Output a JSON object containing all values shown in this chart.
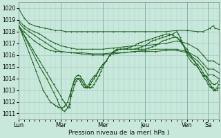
{
  "bg_color": "#c8e8dc",
  "grid_color": "#a8ccc0",
  "line_color": "#1a5c1a",
  "ylim": [
    1010.5,
    1020.5
  ],
  "yticks": [
    1011,
    1012,
    1013,
    1014,
    1015,
    1016,
    1017,
    1018,
    1019,
    1020
  ],
  "xlabel": "Pression niveau de la mer( hPa )",
  "day_labels": [
    "Lun",
    "Mar",
    "Mer",
    "Jeu",
    "Ven",
    "Sa"
  ],
  "day_positions": [
    0,
    48,
    96,
    144,
    192,
    216
  ],
  "xlim": [
    0,
    228
  ],
  "lines": [
    {
      "points": [
        [
          0,
          1020.0
        ],
        [
          6,
          1019.2
        ],
        [
          12,
          1018.7
        ],
        [
          18,
          1018.5
        ],
        [
          24,
          1018.4
        ],
        [
          30,
          1018.3
        ],
        [
          36,
          1018.2
        ],
        [
          42,
          1018.1
        ],
        [
          48,
          1018.1
        ],
        [
          54,
          1018.0
        ],
        [
          60,
          1018.0
        ],
        [
          66,
          1018.0
        ],
        [
          72,
          1018.0
        ],
        [
          78,
          1018.0
        ],
        [
          84,
          1018.0
        ],
        [
          90,
          1018.0
        ],
        [
          96,
          1018.0
        ],
        [
          108,
          1018.0
        ],
        [
          120,
          1018.0
        ],
        [
          132,
          1018.0
        ],
        [
          144,
          1018.0
        ],
        [
          156,
          1018.0
        ],
        [
          168,
          1018.0
        ],
        [
          180,
          1018.1
        ],
        [
          192,
          1018.1
        ],
        [
          204,
          1018.0
        ],
        [
          210,
          1018.0
        ],
        [
          216,
          1018.2
        ],
        [
          218,
          1018.3
        ],
        [
          222,
          1018.5
        ],
        [
          224,
          1018.3
        ],
        [
          228,
          1018.2
        ]
      ]
    },
    {
      "points": [
        [
          0,
          1019.0
        ],
        [
          6,
          1018.5
        ],
        [
          12,
          1018.2
        ],
        [
          18,
          1018.0
        ],
        [
          24,
          1017.8
        ],
        [
          30,
          1017.5
        ],
        [
          36,
          1017.2
        ],
        [
          42,
          1017.0
        ],
        [
          48,
          1016.8
        ],
        [
          54,
          1016.7
        ],
        [
          60,
          1016.6
        ],
        [
          66,
          1016.5
        ],
        [
          72,
          1016.5
        ],
        [
          84,
          1016.5
        ],
        [
          96,
          1016.5
        ],
        [
          108,
          1016.6
        ],
        [
          120,
          1016.7
        ],
        [
          132,
          1016.8
        ],
        [
          144,
          1016.8
        ],
        [
          156,
          1016.9
        ],
        [
          168,
          1017.0
        ],
        [
          180,
          1017.2
        ],
        [
          192,
          1017.0
        ],
        [
          204,
          1016.5
        ],
        [
          210,
          1016.0
        ],
        [
          216,
          1015.5
        ],
        [
          218,
          1015.5
        ],
        [
          222,
          1015.5
        ],
        [
          228,
          1015.2
        ]
      ]
    },
    {
      "points": [
        [
          0,
          1018.8
        ],
        [
          6,
          1018.3
        ],
        [
          12,
          1018.0
        ],
        [
          18,
          1017.7
        ],
        [
          24,
          1017.4
        ],
        [
          30,
          1017.1
        ],
        [
          36,
          1016.8
        ],
        [
          42,
          1016.5
        ],
        [
          48,
          1016.3
        ],
        [
          60,
          1016.2
        ],
        [
          72,
          1016.1
        ],
        [
          84,
          1016.0
        ],
        [
          96,
          1016.0
        ],
        [
          108,
          1016.1
        ],
        [
          120,
          1016.2
        ],
        [
          132,
          1016.3
        ],
        [
          144,
          1016.4
        ],
        [
          156,
          1016.5
        ],
        [
          168,
          1016.5
        ],
        [
          180,
          1016.5
        ],
        [
          192,
          1016.3
        ],
        [
          204,
          1015.8
        ],
        [
          210,
          1015.3
        ],
        [
          216,
          1014.8
        ],
        [
          222,
          1014.8
        ],
        [
          228,
          1014.5
        ]
      ]
    },
    {
      "points": [
        [
          0,
          1018.5
        ],
        [
          6,
          1018.0
        ],
        [
          12,
          1017.6
        ],
        [
          18,
          1017.2
        ],
        [
          24,
          1016.9
        ],
        [
          30,
          1016.6
        ],
        [
          36,
          1016.4
        ],
        [
          42,
          1016.3
        ],
        [
          48,
          1016.3
        ],
        [
          60,
          1016.2
        ],
        [
          72,
          1016.2
        ],
        [
          84,
          1016.1
        ],
        [
          96,
          1016.1
        ],
        [
          108,
          1016.2
        ],
        [
          120,
          1016.2
        ],
        [
          132,
          1016.3
        ],
        [
          144,
          1016.3
        ],
        [
          156,
          1016.3
        ],
        [
          168,
          1016.4
        ],
        [
          180,
          1016.4
        ],
        [
          192,
          1016.2
        ],
        [
          204,
          1015.5
        ],
        [
          210,
          1015.0
        ],
        [
          216,
          1014.3
        ],
        [
          222,
          1014.3
        ],
        [
          228,
          1014.0
        ]
      ]
    },
    {
      "points": [
        [
          0,
          1018.5
        ],
        [
          4,
          1018.0
        ],
        [
          8,
          1017.5
        ],
        [
          12,
          1017.0
        ],
        [
          16,
          1016.5
        ],
        [
          20,
          1016.0
        ],
        [
          24,
          1015.5
        ],
        [
          28,
          1015.0
        ],
        [
          32,
          1014.5
        ],
        [
          36,
          1014.0
        ],
        [
          40,
          1013.5
        ],
        [
          44,
          1013.0
        ],
        [
          48,
          1012.5
        ],
        [
          50,
          1012.2
        ],
        [
          52,
          1012.0
        ],
        [
          54,
          1011.8
        ],
        [
          56,
          1011.5
        ],
        [
          58,
          1011.5
        ],
        [
          60,
          1013.0
        ],
        [
          62,
          1013.5
        ],
        [
          64,
          1014.0
        ],
        [
          66,
          1014.2
        ],
        [
          68,
          1014.3
        ],
        [
          70,
          1014.2
        ],
        [
          72,
          1014.0
        ],
        [
          74,
          1013.8
        ],
        [
          76,
          1013.5
        ],
        [
          78,
          1013.3
        ],
        [
          80,
          1013.2
        ],
        [
          82,
          1013.2
        ],
        [
          84,
          1013.3
        ],
        [
          86,
          1013.5
        ],
        [
          88,
          1013.8
        ],
        [
          90,
          1014.0
        ],
        [
          92,
          1014.3
        ],
        [
          94,
          1014.6
        ],
        [
          96,
          1015.0
        ],
        [
          100,
          1015.5
        ],
        [
          104,
          1016.0
        ],
        [
          108,
          1016.3
        ],
        [
          112,
          1016.5
        ],
        [
          116,
          1016.5
        ],
        [
          120,
          1016.5
        ],
        [
          124,
          1016.6
        ],
        [
          128,
          1016.7
        ],
        [
          132,
          1016.8
        ],
        [
          136,
          1017.0
        ],
        [
          140,
          1017.1
        ],
        [
          144,
          1017.2
        ],
        [
          148,
          1017.3
        ],
        [
          152,
          1017.4
        ],
        [
          156,
          1017.5
        ],
        [
          160,
          1017.6
        ],
        [
          164,
          1017.7
        ],
        [
          168,
          1017.8
        ],
        [
          172,
          1017.8
        ],
        [
          176,
          1017.7
        ],
        [
          180,
          1017.5
        ],
        [
          184,
          1017.2
        ],
        [
          188,
          1016.8
        ],
        [
          192,
          1016.5
        ],
        [
          196,
          1016.0
        ],
        [
          200,
          1015.5
        ],
        [
          204,
          1015.0
        ],
        [
          208,
          1014.5
        ],
        [
          210,
          1014.3
        ],
        [
          212,
          1014.2
        ],
        [
          214,
          1014.1
        ],
        [
          216,
          1013.8
        ],
        [
          218,
          1013.5
        ],
        [
          220,
          1013.3
        ],
        [
          222,
          1013.2
        ],
        [
          224,
          1013.0
        ],
        [
          226,
          1013.0
        ],
        [
          228,
          1013.2
        ]
      ]
    },
    {
      "points": [
        [
          0,
          1018.5
        ],
        [
          4,
          1018.0
        ],
        [
          8,
          1017.4
        ],
        [
          12,
          1016.8
        ],
        [
          16,
          1016.2
        ],
        [
          20,
          1015.6
        ],
        [
          24,
          1015.0
        ],
        [
          28,
          1014.5
        ],
        [
          32,
          1014.0
        ],
        [
          36,
          1013.4
        ],
        [
          40,
          1012.8
        ],
        [
          44,
          1012.2
        ],
        [
          46,
          1011.8
        ],
        [
          48,
          1011.5
        ],
        [
          50,
          1011.3
        ],
        [
          52,
          1011.2
        ],
        [
          54,
          1011.3
        ],
        [
          56,
          1011.5
        ],
        [
          58,
          1011.8
        ],
        [
          60,
          1012.5
        ],
        [
          62,
          1013.0
        ],
        [
          64,
          1013.5
        ],
        [
          66,
          1013.8
        ],
        [
          68,
          1014.0
        ],
        [
          70,
          1014.0
        ],
        [
          72,
          1013.8
        ],
        [
          74,
          1013.5
        ],
        [
          76,
          1013.3
        ],
        [
          78,
          1013.2
        ],
        [
          80,
          1013.3
        ],
        [
          82,
          1013.5
        ],
        [
          84,
          1013.8
        ],
        [
          86,
          1014.0
        ],
        [
          88,
          1014.2
        ],
        [
          90,
          1014.5
        ],
        [
          92,
          1014.8
        ],
        [
          94,
          1015.0
        ],
        [
          96,
          1015.2
        ],
        [
          100,
          1015.5
        ],
        [
          104,
          1016.0
        ],
        [
          108,
          1016.3
        ],
        [
          112,
          1016.5
        ],
        [
          116,
          1016.5
        ],
        [
          120,
          1016.5
        ],
        [
          124,
          1016.5
        ],
        [
          128,
          1016.5
        ],
        [
          132,
          1016.5
        ],
        [
          136,
          1016.6
        ],
        [
          140,
          1016.7
        ],
        [
          144,
          1016.8
        ],
        [
          148,
          1017.0
        ],
        [
          152,
          1017.2
        ],
        [
          156,
          1017.3
        ],
        [
          160,
          1017.4
        ],
        [
          164,
          1017.5
        ],
        [
          168,
          1017.6
        ],
        [
          172,
          1017.7
        ],
        [
          176,
          1017.8
        ],
        [
          180,
          1018.0
        ],
        [
          182,
          1017.8
        ],
        [
          184,
          1017.5
        ],
        [
          186,
          1017.2
        ],
        [
          188,
          1016.8
        ],
        [
          190,
          1016.4
        ],
        [
          192,
          1016.0
        ],
        [
          196,
          1015.5
        ],
        [
          200,
          1015.2
        ],
        [
          204,
          1015.0
        ],
        [
          208,
          1014.5
        ],
        [
          210,
          1014.2
        ],
        [
          212,
          1014.0
        ],
        [
          214,
          1013.8
        ],
        [
          216,
          1013.5
        ],
        [
          218,
          1013.3
        ],
        [
          220,
          1013.2
        ],
        [
          222,
          1013.0
        ],
        [
          224,
          1013.0
        ],
        [
          226,
          1013.2
        ],
        [
          228,
          1013.5
        ]
      ]
    },
    {
      "points": [
        [
          0,
          1018.5
        ],
        [
          4,
          1017.8
        ],
        [
          8,
          1017.0
        ],
        [
          12,
          1016.2
        ],
        [
          16,
          1015.4
        ],
        [
          20,
          1014.6
        ],
        [
          24,
          1013.8
        ],
        [
          28,
          1013.0
        ],
        [
          32,
          1012.5
        ],
        [
          36,
          1012.0
        ],
        [
          40,
          1011.8
        ],
        [
          42,
          1011.7
        ],
        [
          44,
          1011.6
        ],
        [
          46,
          1011.5
        ],
        [
          48,
          1011.5
        ],
        [
          50,
          1011.5
        ],
        [
          52,
          1011.6
        ],
        [
          54,
          1011.8
        ],
        [
          56,
          1012.0
        ],
        [
          58,
          1012.5
        ],
        [
          60,
          1013.0
        ],
        [
          62,
          1013.5
        ],
        [
          64,
          1013.8
        ],
        [
          66,
          1014.0
        ],
        [
          68,
          1014.0
        ],
        [
          70,
          1013.8
        ],
        [
          72,
          1013.5
        ],
        [
          74,
          1013.3
        ],
        [
          76,
          1013.2
        ],
        [
          78,
          1013.3
        ],
        [
          80,
          1013.5
        ],
        [
          82,
          1013.8
        ],
        [
          84,
          1014.0
        ],
        [
          86,
          1014.2
        ],
        [
          88,
          1014.3
        ],
        [
          90,
          1014.5
        ],
        [
          92,
          1014.8
        ],
        [
          94,
          1015.0
        ],
        [
          96,
          1015.2
        ],
        [
          100,
          1015.5
        ],
        [
          104,
          1016.0
        ],
        [
          108,
          1016.2
        ],
        [
          112,
          1016.4
        ],
        [
          116,
          1016.5
        ],
        [
          120,
          1016.5
        ],
        [
          124,
          1016.5
        ],
        [
          128,
          1016.5
        ],
        [
          132,
          1016.5
        ],
        [
          136,
          1016.5
        ],
        [
          140,
          1016.5
        ],
        [
          144,
          1016.5
        ],
        [
          148,
          1016.6
        ],
        [
          152,
          1016.7
        ],
        [
          156,
          1016.8
        ],
        [
          160,
          1017.0
        ],
        [
          164,
          1017.2
        ],
        [
          168,
          1017.3
        ],
        [
          172,
          1017.4
        ],
        [
          176,
          1017.5
        ],
        [
          180,
          1017.5
        ],
        [
          184,
          1017.3
        ],
        [
          186,
          1017.0
        ],
        [
          188,
          1016.8
        ],
        [
          190,
          1016.5
        ],
        [
          192,
          1016.2
        ],
        [
          196,
          1015.8
        ],
        [
          200,
          1015.5
        ],
        [
          204,
          1015.2
        ],
        [
          208,
          1014.8
        ],
        [
          210,
          1014.5
        ],
        [
          212,
          1014.3
        ],
        [
          214,
          1014.2
        ],
        [
          216,
          1014.0
        ],
        [
          218,
          1013.8
        ],
        [
          220,
          1013.6
        ],
        [
          222,
          1013.5
        ],
        [
          224,
          1013.5
        ],
        [
          226,
          1013.6
        ],
        [
          228,
          1013.8
        ]
      ]
    }
  ]
}
